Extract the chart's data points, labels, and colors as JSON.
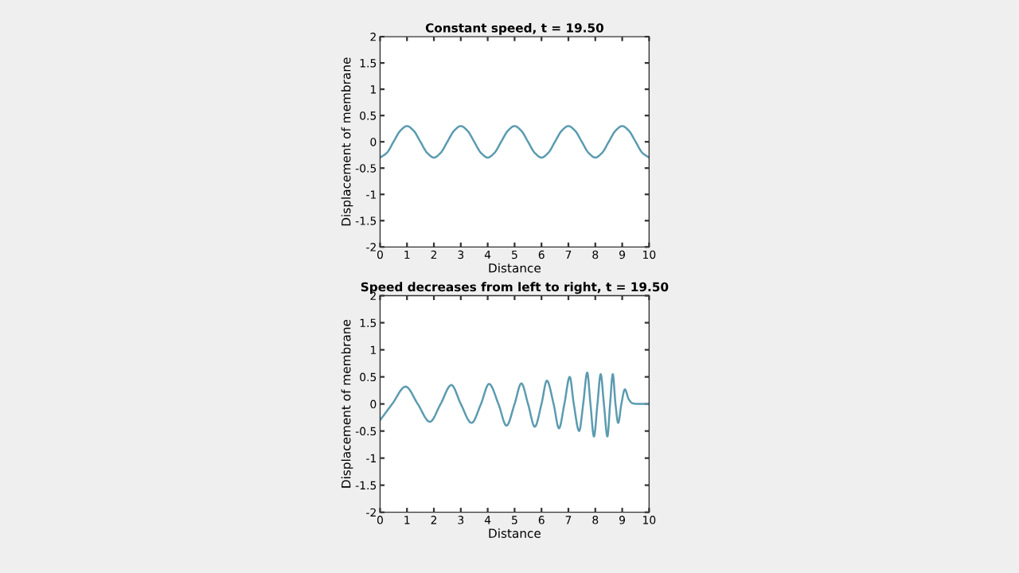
{
  "chart_data": [
    {
      "type": "line",
      "title": "Constant speed, t = 19.50",
      "xlabel": "Distance",
      "ylabel": "Displacement of membrane",
      "xlim": [
        0,
        10
      ],
      "ylim": [
        -2,
        2
      ],
      "xticks": [
        0,
        1,
        2,
        3,
        4,
        5,
        6,
        7,
        8,
        9,
        10
      ],
      "yticks": [
        -2,
        -1.5,
        -1,
        -0.5,
        0,
        0.5,
        1,
        1.5,
        2
      ],
      "grid": false,
      "legend": false,
      "series": [
        {
          "color": "#5b9bb0",
          "x": [
            0,
            0.25,
            0.5,
            0.75,
            1,
            1.25,
            1.5,
            1.75,
            2,
            2.25,
            2.5,
            2.75,
            3,
            3.25,
            3.5,
            3.75,
            4,
            4.25,
            4.5,
            4.75,
            5,
            5.25,
            5.5,
            5.75,
            6,
            6.25,
            6.5,
            6.75,
            7,
            7.25,
            7.5,
            7.75,
            8,
            8.25,
            8.5,
            8.75,
            9,
            9.25,
            9.5,
            9.75,
            10
          ],
          "values": [
            -0.3,
            -0.21,
            0,
            0.21,
            0.3,
            0.21,
            0,
            -0.21,
            -0.3,
            -0.21,
            0,
            0.21,
            0.3,
            0.21,
            0,
            -0.21,
            -0.3,
            -0.21,
            0,
            0.21,
            0.3,
            0.21,
            0,
            -0.21,
            -0.3,
            -0.21,
            0,
            0.21,
            0.3,
            0.21,
            0,
            -0.21,
            -0.3,
            -0.21,
            0,
            0.21,
            0.3,
            0.21,
            0,
            -0.21,
            -0.3
          ]
        }
      ]
    },
    {
      "type": "line",
      "title": "Speed decreases from left to right, t = 19.50",
      "xlabel": "Distance",
      "ylabel": "Displacement of membrane",
      "xlim": [
        0,
        10
      ],
      "ylim": [
        -2,
        2
      ],
      "xticks": [
        0,
        1,
        2,
        3,
        4,
        5,
        6,
        7,
        8,
        9,
        10
      ],
      "yticks": [
        -2,
        -1.5,
        -1,
        -0.5,
        0,
        0.5,
        1,
        1.5,
        2
      ],
      "grid": false,
      "legend": false,
      "series": [
        {
          "color": "#5b9bb0",
          "x": [
            0,
            0.45,
            0.95,
            1.4,
            1.85,
            2.25,
            2.65,
            3.0,
            3.4,
            3.75,
            4.05,
            4.4,
            4.7,
            5.0,
            5.25,
            5.5,
            5.75,
            6.0,
            6.2,
            6.45,
            6.65,
            6.85,
            7.05,
            7.2,
            7.4,
            7.55,
            7.7,
            7.82,
            7.95,
            8.08,
            8.2,
            8.32,
            8.45,
            8.55,
            8.65,
            8.75,
            8.85,
            8.97,
            9.1,
            9.25,
            9.4,
            9.6,
            10
          ],
          "values": [
            -0.3,
            0,
            0.32,
            0,
            -0.33,
            0,
            0.35,
            0,
            -0.35,
            0,
            0.37,
            0,
            -0.4,
            0,
            0.38,
            0,
            -0.42,
            0,
            0.43,
            0,
            -0.45,
            0,
            0.5,
            0,
            -0.5,
            0,
            0.58,
            0,
            -0.6,
            0,
            0.55,
            0,
            -0.6,
            0,
            0.55,
            0,
            -0.35,
            0,
            0.27,
            0.08,
            0.01,
            0,
            0
          ]
        }
      ]
    }
  ]
}
